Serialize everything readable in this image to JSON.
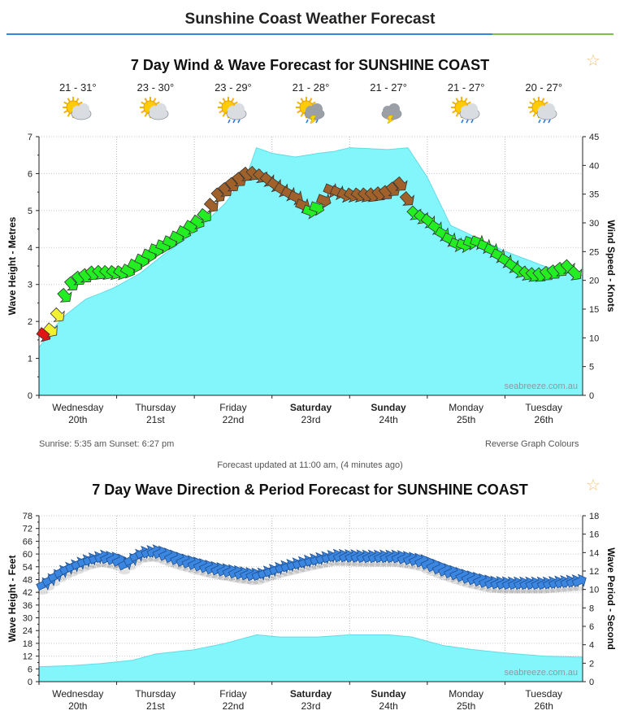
{
  "page": {
    "title": "Sunshine Coast Weather Forecast"
  },
  "wind_chart": {
    "title": "7 Day Wind & Wave Forecast for SUNSHINE COAST",
    "temps": [
      "21 - 31°",
      "23 - 30°",
      "23 - 29°",
      "21 - 28°",
      "21 - 27°",
      "21 - 27°",
      "20 - 27°"
    ],
    "weather_icons": [
      "partly-cloudy-sun-icon",
      "partly-cloudy-sun-icon",
      "sun-cloud-rain-icon",
      "sun-cloud-storm-rain-icon",
      "cloud-lightning-icon",
      "sun-cloud-rain-icon",
      "sun-cloud-rain-icon"
    ],
    "sun_info": "Sunrise: 5:35 am  Sunset: 6:27 pm",
    "reverse_link": "Reverse Graph Colours",
    "watermark": "seabreeze.com.au"
  },
  "updated_text": "Forecast updated at 11:00 am, (4 minutes ago)",
  "wave_chart": {
    "title": "7 Day Wave Direction & Period Forecast for SUNSHINE COAST",
    "watermark": "seabreeze.com.au"
  },
  "colors": {
    "wave_fill": "#83f6fb",
    "wave_stroke": "#62dbe6",
    "wind_red": "#e01515",
    "wind_yellow": "#f3f032",
    "wind_green": "#22ee22",
    "wind_brown": "#a0622a",
    "dir_blue": "#3a86e0",
    "accent_blue": "#2f8ad8",
    "accent_green": "#7cc242"
  },
  "chart_data": [
    {
      "type": "area",
      "title": "7 Day Wind & Wave Forecast for SUNSHINE COAST",
      "days": [
        {
          "name": "Wednesday",
          "date": "20th",
          "bold": false
        },
        {
          "name": "Thursday",
          "date": "21st",
          "bold": false
        },
        {
          "name": "Friday",
          "date": "22nd",
          "bold": false
        },
        {
          "name": "Saturday",
          "date": "23rd",
          "bold": true
        },
        {
          "name": "Sunday",
          "date": "24th",
          "bold": true
        },
        {
          "name": "Monday",
          "date": "25th",
          "bold": false
        },
        {
          "name": "Tuesday",
          "date": "26th",
          "bold": false
        }
      ],
      "x_range_days": [
        0,
        7
      ],
      "ylabel_left": "Wave Height - Metres",
      "ylabel_right": "Wind Speed - Knots",
      "y_left_range": [
        0,
        7
      ],
      "y_left_ticks": [
        0,
        1,
        2,
        3,
        4,
        5,
        6,
        7
      ],
      "y_right_range": [
        0,
        45
      ],
      "y_right_ticks": [
        0,
        5,
        10,
        15,
        20,
        25,
        30,
        35,
        40,
        45
      ],
      "wave_height_m": [
        [
          0,
          1.3
        ],
        [
          0.3,
          2.1
        ],
        [
          0.6,
          2.6
        ],
        [
          0.9,
          2.85
        ],
        [
          1.0,
          2.95
        ],
        [
          1.3,
          3.3
        ],
        [
          1.6,
          3.8
        ],
        [
          2.0,
          4.4
        ],
        [
          2.4,
          5.2
        ],
        [
          2.7,
          6.1
        ],
        [
          2.8,
          6.7
        ],
        [
          3.0,
          6.55
        ],
        [
          3.3,
          6.45
        ],
        [
          3.6,
          6.55
        ],
        [
          3.8,
          6.6
        ],
        [
          4.0,
          6.7
        ],
        [
          4.5,
          6.65
        ],
        [
          4.75,
          6.7
        ],
        [
          5.0,
          5.9
        ],
        [
          5.3,
          4.6
        ],
        [
          5.6,
          4.3
        ],
        [
          6.0,
          3.9
        ],
        [
          6.5,
          3.5
        ],
        [
          7.0,
          3.25
        ]
      ],
      "wind_speed_kn": [
        [
          0,
          10.5
        ],
        [
          0.12,
          11
        ],
        [
          0.2,
          13
        ],
        [
          0.28,
          16
        ],
        [
          0.36,
          19
        ],
        [
          0.5,
          20.5
        ],
        [
          0.7,
          21.5
        ],
        [
          0.9,
          21.5
        ],
        [
          1.1,
          21.5
        ],
        [
          1.3,
          23.5
        ],
        [
          1.5,
          25.5
        ],
        [
          1.7,
          27
        ],
        [
          1.9,
          29
        ],
        [
          2.1,
          31
        ],
        [
          2.3,
          35
        ],
        [
          2.5,
          37
        ],
        [
          2.7,
          39
        ],
        [
          2.9,
          38
        ],
        [
          3.1,
          36
        ],
        [
          3.3,
          34.5
        ],
        [
          3.45,
          32
        ],
        [
          3.6,
          33
        ],
        [
          3.75,
          36
        ],
        [
          3.9,
          35
        ],
        [
          4.1,
          35
        ],
        [
          4.3,
          35
        ],
        [
          4.5,
          35.5
        ],
        [
          4.65,
          37
        ],
        [
          4.8,
          32
        ],
        [
          5.0,
          30.5
        ],
        [
          5.2,
          28
        ],
        [
          5.4,
          26
        ],
        [
          5.6,
          27
        ],
        [
          5.8,
          25.5
        ],
        [
          6.0,
          23.5
        ],
        [
          6.2,
          21.5
        ],
        [
          6.4,
          21
        ],
        [
          6.6,
          21.5
        ],
        [
          6.8,
          22.5
        ],
        [
          7.0,
          20
        ]
      ],
      "wind_color_bands_kn": {
        "red": "0-11",
        "yellow": "11-17",
        "green": "17-33",
        "brown": ">33"
      }
    },
    {
      "type": "area",
      "title": "7 Day Wave Direction & Period Forecast for SUNSHINE COAST",
      "ylabel_left": "Wave Height - Feet",
      "ylabel_right": "Wave Period - Second",
      "y_left_range": [
        0,
        78
      ],
      "y_left_ticks": [
        0,
        6,
        12,
        18,
        24,
        30,
        36,
        42,
        48,
        54,
        60,
        66,
        72,
        78
      ],
      "y_right_range": [
        0,
        18
      ],
      "y_right_ticks": [
        0,
        2,
        4,
        6,
        8,
        10,
        12,
        14,
        16,
        18
      ],
      "wave_height_ft": [
        [
          0,
          7
        ],
        [
          0.4,
          7.5
        ],
        [
          0.8,
          8.5
        ],
        [
          1.2,
          10
        ],
        [
          1.5,
          13
        ],
        [
          2.0,
          15
        ],
        [
          2.4,
          18
        ],
        [
          2.8,
          22
        ],
        [
          3.1,
          21
        ],
        [
          3.6,
          21
        ],
        [
          4.0,
          22
        ],
        [
          4.5,
          22
        ],
        [
          4.8,
          21
        ],
        [
          5.2,
          17
        ],
        [
          5.6,
          15
        ],
        [
          6.0,
          13.5
        ],
        [
          6.5,
          12
        ],
        [
          7.0,
          11.5
        ]
      ],
      "wave_period_s": [
        [
          0,
          10.2
        ],
        [
          0.3,
          12
        ],
        [
          0.6,
          13.1
        ],
        [
          0.8,
          13.5
        ],
        [
          1.0,
          13.2
        ],
        [
          1.1,
          12.7
        ],
        [
          1.3,
          13.9
        ],
        [
          1.5,
          14.1
        ],
        [
          1.8,
          13.2
        ],
        [
          2.2,
          12.3
        ],
        [
          2.6,
          11.7
        ],
        [
          2.8,
          11.5
        ],
        [
          3.1,
          12.3
        ],
        [
          3.5,
          13.1
        ],
        [
          3.8,
          13.6
        ],
        [
          4.2,
          13.5
        ],
        [
          4.6,
          13.5
        ],
        [
          4.9,
          13.1
        ],
        [
          5.2,
          12.1
        ],
        [
          5.5,
          11.3
        ],
        [
          5.8,
          10.7
        ],
        [
          6.0,
          10.6
        ],
        [
          6.5,
          10.6
        ],
        [
          7.0,
          10.9
        ]
      ]
    }
  ]
}
